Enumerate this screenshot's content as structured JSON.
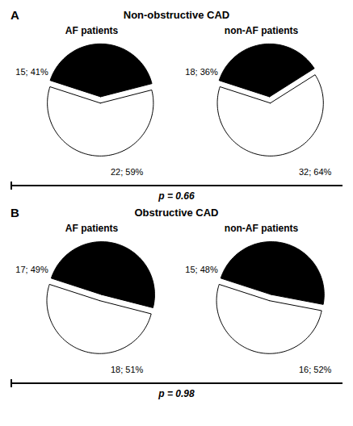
{
  "chart_data": [
    {
      "type": "pie",
      "title": "Non-obstructive CAD",
      "subtitle": "AF patients",
      "annotations": [
        "A",
        "p = 0.66"
      ],
      "values": [
        41,
        59
      ],
      "value_labels": [
        "15; 41%",
        "22; 59%"
      ],
      "colors": [
        "#000000",
        "#ffffff"
      ],
      "data_labels": true
    },
    {
      "type": "pie",
      "subtitle": "non-AF patients",
      "values": [
        36,
        64
      ],
      "value_labels": [
        "18; 36%",
        "32; 64%"
      ],
      "colors": [
        "#000000",
        "#ffffff"
      ],
      "data_labels": true
    },
    {
      "type": "pie",
      "title": "Obstructive CAD",
      "subtitle": "AF patients",
      "annotations": [
        "B",
        "p = 0.98"
      ],
      "values": [
        49,
        51
      ],
      "value_labels": [
        "17; 49%",
        "18; 51%"
      ],
      "colors": [
        "#000000",
        "#ffffff"
      ],
      "data_labels": true
    },
    {
      "type": "pie",
      "subtitle": "non-AF patients",
      "values": [
        48,
        52
      ],
      "value_labels": [
        "15; 48%",
        "16; 52%"
      ],
      "colors": [
        "#000000",
        "#ffffff"
      ],
      "data_labels": true
    }
  ]
}
